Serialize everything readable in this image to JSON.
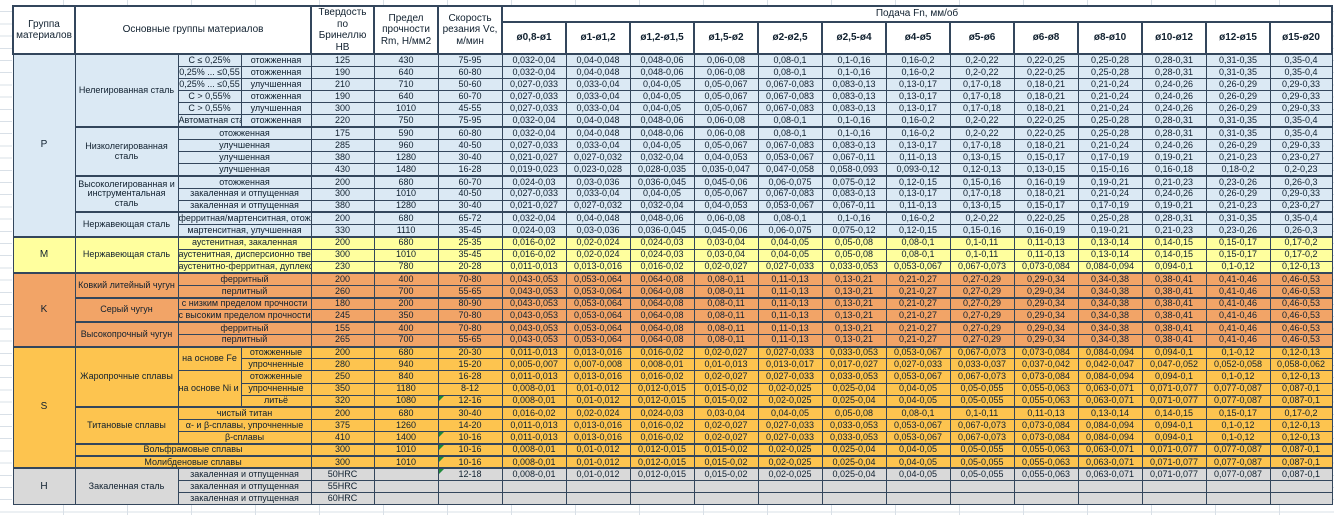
{
  "table": {
    "headers": {
      "group": "Группа материалов",
      "main_groups": "Основные группы материалов",
      "hardness": "Твердость по Бринеллю HB",
      "strength": "Предел прочности Rm, Н/мм2",
      "speed": "Скорость резания Vc, м/мин",
      "feed": "Подача Fn, мм/об",
      "diameters": [
        "ø0,8-ø1",
        "ø1-ø1,2",
        "ø1,2-ø1,5",
        "ø1,5-ø2",
        "ø2-ø2,5",
        "ø2,5-ø4",
        "ø4-ø5",
        "ø5-ø6",
        "ø6-ø8",
        "ø8-ø10",
        "ø10-ø12",
        "ø12-ø15",
        "ø15-ø20"
      ]
    },
    "colors": {
      "group_P": "#dbe9f4",
      "group_M": "#ffff9e",
      "group_K": "#f2a467",
      "group_S": "#fdc44f",
      "group_H": "#d9d9d9",
      "border": "#33465c",
      "comment_flag": "#1e8a3c"
    },
    "feed_patterns": {
      "A": [
        "0,032-0,04",
        "0,04-0,048",
        "0,048-0,06",
        "0,06-0,08",
        "0,08-0,1",
        "0,1-0,16",
        "0,16-0,2",
        "0,2-0,22",
        "0,22-0,25",
        "0,25-0,28",
        "0,28-0,31",
        "0,31-0,35",
        "0,35-0,4"
      ],
      "B": [
        "0,027-0,033",
        "0,033-0,04",
        "0,04-0,05",
        "0,05-0,067",
        "0,067-0,083",
        "0,083-0,13",
        "0,13-0,17",
        "0,17-0,18",
        "0,18-0,21",
        "0,21-0,24",
        "0,24-0,26",
        "0,26-0,29",
        "0,29-0,33"
      ],
      "C": [
        "0,021-0,027",
        "0,027-0,032",
        "0,032-0,04",
        "0,04-0,053",
        "0,053-0,067",
        "0,067-0,11",
        "0,11-0,13",
        "0,13-0,15",
        "0,15-0,17",
        "0,17-0,19",
        "0,19-0,21",
        "0,21-0,23",
        "0,23-0,27"
      ],
      "D": [
        "0,019-0,023",
        "0,023-0,028",
        "0,028-0,035",
        "0,035-0,047",
        "0,047-0,058",
        "0,058-0,093",
        "0,093-0,12",
        "0,12-0,13",
        "0,13-0,15",
        "0,15-0,16",
        "0,16-0,18",
        "0,18-0,2",
        "0,2-0,23"
      ],
      "E": [
        "0,024-0,03",
        "0,03-0,036",
        "0,036-0,045",
        "0,045-0,06",
        "0,06-0,075",
        "0,075-0,12",
        "0,12-0,15",
        "0,15-0,16",
        "0,16-0,19",
        "0,19-0,21",
        "0,21-0,23",
        "0,23-0,26",
        "0,26-0,3"
      ],
      "F": [
        "0,016-0,02",
        "0,02-0,024",
        "0,024-0,03",
        "0,03-0,04",
        "0,04-0,05",
        "0,05-0,08",
        "0,08-0,1",
        "0,1-0,11",
        "0,11-0,13",
        "0,13-0,14",
        "0,14-0,15",
        "0,15-0,17",
        "0,17-0,2"
      ],
      "G": [
        "0,011-0,013",
        "0,013-0,016",
        "0,016-0,02",
        "0,02-0,027",
        "0,027-0,033",
        "0,033-0,053",
        "0,053-0,067",
        "0,067-0,073",
        "0,073-0,084",
        "0,084-0,094",
        "0,094-0,1",
        "0,1-0,12",
        "0,12-0,13"
      ],
      "K": [
        "0,043-0,053",
        "0,053-0,064",
        "0,064-0,08",
        "0,08-0,11",
        "0,11-0,13",
        "0,13-0,21",
        "0,21-0,27",
        "0,27-0,29",
        "0,29-0,34",
        "0,34-0,38",
        "0,38-0,41",
        "0,41-0,46",
        "0,46-0,53"
      ],
      "H": [
        "0,005-0,007",
        "0,007-0,008",
        "0,008-0,01",
        "0,01-0,013",
        "0,013-0,017",
        "0,017-0,027",
        "0,027-0,033",
        "0,033-0,037",
        "0,037-0,042",
        "0,042-0,047",
        "0,047-0,052",
        "0,052-0,058",
        "0,058-0,062"
      ],
      "I": [
        "0,008-0,01",
        "0,01-0,012",
        "0,012-0,015",
        "0,015-0,02",
        "0,02-0,025",
        "0,025-0,04",
        "0,04-0,05",
        "0,05-0,055",
        "0,055-0,063",
        "0,063-0,071",
        "0,071-0,077",
        "0,077-0,087",
        "0,087-0,1"
      ],
      "EMPTY": [
        "",
        "",
        "",
        "",
        "",
        "",
        "",
        "",
        "",
        "",
        "",
        "",
        ""
      ]
    },
    "rows": [
      {
        "bg": "p",
        "cells": [
          {
            "t": "P",
            "rs": 15,
            "c": "grp"
          },
          {
            "t": "Нелегированная сталь",
            "rs": 6,
            "c": "wrap"
          },
          {
            "t": "C ≤ 0,25%"
          },
          {
            "t": "отожженная"
          },
          {
            "t": "125"
          },
          {
            "t": "430"
          },
          {
            "t": "75-95"
          }
        ],
        "fp": "A"
      },
      {
        "bg": "p",
        "cells": [
          {
            "t": "0,25% ... ≤0,55"
          },
          {
            "t": "отожженная"
          },
          {
            "t": "190"
          },
          {
            "t": "640"
          },
          {
            "t": "60-80"
          }
        ],
        "fp": "A"
      },
      {
        "bg": "p",
        "cells": [
          {
            "t": "0,25% ... ≤0,55"
          },
          {
            "t": "улучшенная"
          },
          {
            "t": "210"
          },
          {
            "t": "710"
          },
          {
            "t": "50-60"
          }
        ],
        "fp": "B"
      },
      {
        "bg": "p",
        "cells": [
          {
            "t": "C > 0,55%"
          },
          {
            "t": "отожженная"
          },
          {
            "t": "190"
          },
          {
            "t": "640"
          },
          {
            "t": "60-70"
          }
        ],
        "fp": "B"
      },
      {
        "bg": "p",
        "cells": [
          {
            "t": "C > 0,55%"
          },
          {
            "t": "улучшенная"
          },
          {
            "t": "300"
          },
          {
            "t": "1010"
          },
          {
            "t": "45-55"
          }
        ],
        "fp": "B"
      },
      {
        "bg": "p",
        "cells": [
          {
            "t": "Автоматная сталь"
          },
          {
            "t": "отожженная"
          },
          {
            "t": "220"
          },
          {
            "t": "750"
          },
          {
            "t": "75-95"
          }
        ],
        "fp": "A"
      },
      {
        "bg": "p",
        "tt": 1,
        "cells": [
          {
            "t": "Низколегированная сталь",
            "rs": 4,
            "c": "wrap"
          },
          {
            "t": "отожженная",
            "cs": 2
          },
          {
            "t": "175"
          },
          {
            "t": "590"
          },
          {
            "t": "60-80"
          }
        ],
        "fp": "A"
      },
      {
        "bg": "p",
        "cells": [
          {
            "t": "улучшенная",
            "cs": 2
          },
          {
            "t": "285"
          },
          {
            "t": "960"
          },
          {
            "t": "40-50"
          }
        ],
        "fp": "B"
      },
      {
        "bg": "p",
        "cells": [
          {
            "t": "улучшенная",
            "cs": 2
          },
          {
            "t": "380"
          },
          {
            "t": "1280"
          },
          {
            "t": "30-40"
          }
        ],
        "fp": "C"
      },
      {
        "bg": "p",
        "cells": [
          {
            "t": "улучшенная",
            "cs": 2
          },
          {
            "t": "430"
          },
          {
            "t": "1480"
          },
          {
            "t": "16-28"
          }
        ],
        "fp": "D"
      },
      {
        "bg": "p",
        "tt": 1,
        "cells": [
          {
            "t": "Высоколегированная и инструментальная сталь",
            "rs": 3,
            "c": "wrap"
          },
          {
            "t": "отожженная",
            "cs": 2
          },
          {
            "t": "200"
          },
          {
            "t": "680"
          },
          {
            "t": "60-70"
          }
        ],
        "fp": "E"
      },
      {
        "bg": "p",
        "cells": [
          {
            "t": "закаленная и отпущенная",
            "cs": 2
          },
          {
            "t": "300"
          },
          {
            "t": "1010"
          },
          {
            "t": "40-50"
          }
        ],
        "fp": "B"
      },
      {
        "bg": "p",
        "cells": [
          {
            "t": "закаленная и отпущенная",
            "cs": 2
          },
          {
            "t": "380"
          },
          {
            "t": "1280"
          },
          {
            "t": "30-40"
          }
        ],
        "fp": "C"
      },
      {
        "bg": "p",
        "tt": 1,
        "cells": [
          {
            "t": "Нержавеющая сталь",
            "rs": 2,
            "c": "wrap"
          },
          {
            "t": "ферритная/мартенситная, отожженная",
            "cs": 2
          },
          {
            "t": "200"
          },
          {
            "t": "680"
          },
          {
            "t": "65-72"
          }
        ],
        "fp": "A"
      },
      {
        "bg": "p",
        "cells": [
          {
            "t": "мартенситная, улучшенная",
            "cs": 2
          },
          {
            "t": "330"
          },
          {
            "t": "1110"
          },
          {
            "t": "35-45"
          }
        ],
        "fp": "E"
      },
      {
        "bg": "m",
        "tt": 1,
        "cells": [
          {
            "t": "M",
            "rs": 3,
            "c": "grp"
          },
          {
            "t": "Нержавеющая сталь",
            "rs": 3,
            "c": "wrap"
          },
          {
            "t": "аустенитная, закаленная",
            "cs": 2
          },
          {
            "t": "200"
          },
          {
            "t": "680"
          },
          {
            "t": "25-35"
          }
        ],
        "fp": "F"
      },
      {
        "bg": "m",
        "cells": [
          {
            "t": "аустенитная, дисперсионно твердеющая",
            "cs": 2
          },
          {
            "t": "300"
          },
          {
            "t": "1010"
          },
          {
            "t": "35-45"
          }
        ],
        "fp": "F"
      },
      {
        "bg": "m",
        "cells": [
          {
            "t": "аустенитно-ферритная, дуплексная",
            "cs": 2
          },
          {
            "t": "230"
          },
          {
            "t": "780"
          },
          {
            "t": "20-28"
          }
        ],
        "fp": "G"
      },
      {
        "bg": "k",
        "tt": 1,
        "cells": [
          {
            "t": "K",
            "rs": 6,
            "c": "grp"
          },
          {
            "t": "Ковкий литейный чугун",
            "rs": 2,
            "c": "wrap"
          },
          {
            "t": "ферритный",
            "cs": 2
          },
          {
            "t": "200"
          },
          {
            "t": "400"
          },
          {
            "t": "70-80"
          }
        ],
        "fp": "K"
      },
      {
        "bg": "k",
        "cells": [
          {
            "t": "перлитный",
            "cs": 2
          },
          {
            "t": "260"
          },
          {
            "t": "700"
          },
          {
            "t": "55-65"
          }
        ],
        "fp": "K"
      },
      {
        "bg": "k",
        "tt": 1,
        "cells": [
          {
            "t": "Серый чугун",
            "rs": 2,
            "c": "wrap"
          },
          {
            "t": "с низким пределом прочности",
            "cs": 2
          },
          {
            "t": "180"
          },
          {
            "t": "200"
          },
          {
            "t": "80-90"
          }
        ],
        "fp": "K"
      },
      {
        "bg": "k",
        "cells": [
          {
            "t": "с высоким пределом прочности",
            "cs": 2
          },
          {
            "t": "245"
          },
          {
            "t": "350"
          },
          {
            "t": "70-80"
          }
        ],
        "fp": "K"
      },
      {
        "bg": "k",
        "tt": 1,
        "cells": [
          {
            "t": "Высокопрочный чугун",
            "rs": 2,
            "c": "wrap"
          },
          {
            "t": "ферритный",
            "cs": 2
          },
          {
            "t": "155"
          },
          {
            "t": "400"
          },
          {
            "t": "70-80"
          }
        ],
        "fp": "K"
      },
      {
        "bg": "k",
        "cells": [
          {
            "t": "перлитный",
            "cs": 2
          },
          {
            "t": "265"
          },
          {
            "t": "700"
          },
          {
            "t": "55-65"
          }
        ],
        "fp": "K"
      },
      {
        "bg": "s",
        "tt": 1,
        "cells": [
          {
            "t": "S",
            "rs": 10,
            "c": "grp"
          },
          {
            "t": "Жаропрочные сплавы",
            "rs": 5,
            "c": "wrap"
          },
          {
            "t": "на основе Fe",
            "rs": 2
          },
          {
            "t": "отожженные"
          },
          {
            "t": "200"
          },
          {
            "t": "680"
          },
          {
            "t": "20-30"
          }
        ],
        "fp": "G"
      },
      {
        "bg": "s",
        "cells": [
          {
            "t": "упрочненные"
          },
          {
            "t": "280"
          },
          {
            "t": "940"
          },
          {
            "t": "15-20"
          }
        ],
        "fp": "H"
      },
      {
        "bg": "s",
        "cells": [
          {
            "t": "на основе Ni и Co",
            "rs": 3
          },
          {
            "t": "отожженные"
          },
          {
            "t": "250"
          },
          {
            "t": "840"
          },
          {
            "t": "16-28"
          }
        ],
        "fp": "G"
      },
      {
        "bg": "s",
        "cells": [
          {
            "t": "упрочненные"
          },
          {
            "t": "350"
          },
          {
            "t": "1180"
          },
          {
            "t": "8-12"
          }
        ],
        "fp": "I"
      },
      {
        "bg": "s",
        "cells": [
          {
            "t": "литьё"
          },
          {
            "t": "320"
          },
          {
            "t": "1080"
          },
          {
            "t": "12-16",
            "f": 1
          }
        ],
        "fp": "I"
      },
      {
        "bg": "s",
        "tt": 1,
        "cells": [
          {
            "t": "Титановые сплавы",
            "rs": 3,
            "c": "wrap"
          },
          {
            "t": "чистый титан",
            "cs": 2
          },
          {
            "t": "200"
          },
          {
            "t": "680"
          },
          {
            "t": "30-40"
          }
        ],
        "fp": "F"
      },
      {
        "bg": "s",
        "cells": [
          {
            "t": "α- и β-сплавы, упрочненные",
            "cs": 2
          },
          {
            "t": "375"
          },
          {
            "t": "1260"
          },
          {
            "t": "14-20"
          }
        ],
        "fp": "G"
      },
      {
        "bg": "s",
        "cells": [
          {
            "t": "β-сплавы",
            "cs": 2
          },
          {
            "t": "410"
          },
          {
            "t": "1400"
          },
          {
            "t": "10-16",
            "f": 1
          }
        ],
        "fp": "G"
      },
      {
        "bg": "s",
        "tt": 1,
        "cells": [
          {
            "t": "Вольфрамовые сплавы",
            "cs": 3
          },
          {
            "t": "300"
          },
          {
            "t": "1010"
          },
          {
            "t": "10-16",
            "f": 1
          }
        ],
        "fp": "I"
      },
      {
        "bg": "s",
        "tt": 1,
        "cells": [
          {
            "t": "Молибденовые сплавы",
            "cs": 3
          },
          {
            "t": "300"
          },
          {
            "t": "1010"
          },
          {
            "t": "10-16",
            "f": 1
          }
        ],
        "fp": "I"
      },
      {
        "bg": "h",
        "tt": 1,
        "cells": [
          {
            "t": "H",
            "rs": 3,
            "c": "grp"
          },
          {
            "t": "Закаленная сталь",
            "rs": 3,
            "c": "wrap"
          },
          {
            "t": "закаленная и отпущенная",
            "cs": 2
          },
          {
            "t": "50HRC"
          },
          {
            "t": ""
          },
          {
            "t": "12-18",
            "f": 1
          }
        ],
        "fp": "I"
      },
      {
        "bg": "h",
        "cells": [
          {
            "t": "закаленная и отпущенная",
            "cs": 2
          },
          {
            "t": "55HRC"
          },
          {
            "t": ""
          },
          {
            "t": ""
          }
        ],
        "fp": "EMPTY"
      },
      {
        "bg": "h",
        "cells": [
          {
            "t": "закаленная и отпущенная",
            "cs": 2
          },
          {
            "t": "60HRC"
          },
          {
            "t": ""
          },
          {
            "t": ""
          }
        ],
        "fp": "EMPTY"
      }
    ]
  }
}
